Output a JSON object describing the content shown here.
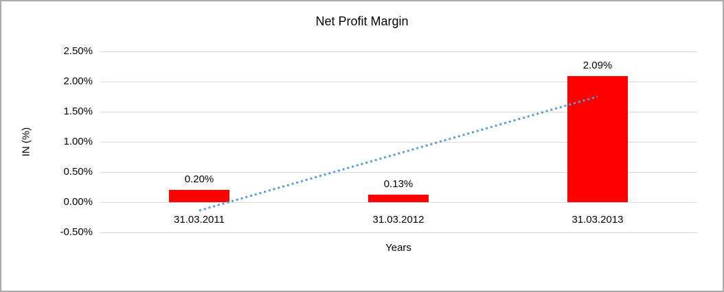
{
  "chart_data": {
    "type": "bar",
    "title": "Net Profit Margin",
    "xlabel": "Years",
    "ylabel": "IN (%)",
    "categories": [
      "31.03.2011",
      "31.03.2012",
      "31.03.2013"
    ],
    "values": [
      0.2,
      0.13,
      2.09
    ],
    "data_labels": [
      "0.20%",
      "0.13%",
      "2.09%"
    ],
    "ylim": [
      -0.5,
      2.5
    ],
    "yticks": [
      {
        "value": 2.5,
        "label": "2.50%"
      },
      {
        "value": 2.0,
        "label": "2.00%"
      },
      {
        "value": 1.5,
        "label": "1.50%"
      },
      {
        "value": 1.0,
        "label": "1.00%"
      },
      {
        "value": 0.5,
        "label": "0.50%"
      },
      {
        "value": 0.0,
        "label": "0.00%"
      },
      {
        "value": -0.5,
        "label": "-0.50%"
      }
    ],
    "grid": "horizontal",
    "gridline_color": "#d9d9d9",
    "bar_color": "#ff0000",
    "legend": "none",
    "trendline": {
      "type": "linear",
      "style": "dotted",
      "color": "#5b9bd5"
    }
  }
}
